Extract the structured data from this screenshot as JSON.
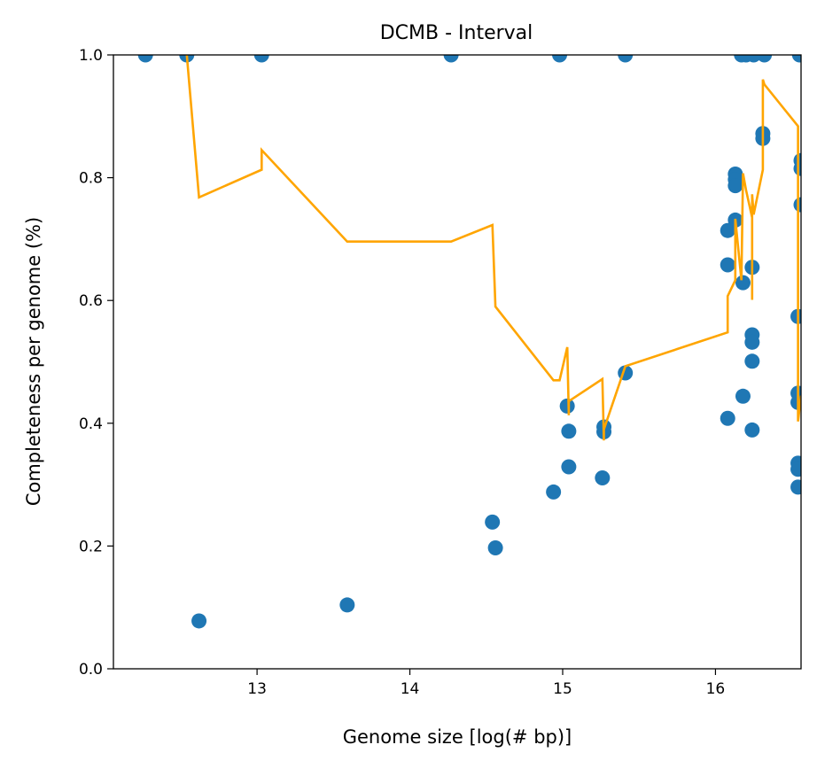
{
  "chart_data": {
    "type": "scatter",
    "title": "DCMB - Interval",
    "xlabel": "Genome size [log(# bp)]",
    "ylabel": "Completeness per genome (%)",
    "xlim": [
      12.06,
      16.56
    ],
    "ylim": [
      0.0,
      1.0
    ],
    "xticks": [
      13,
      14,
      15,
      16
    ],
    "xtick_labels": [
      "13",
      "14",
      "15",
      "16"
    ],
    "yticks": [
      0.0,
      0.2,
      0.4,
      0.6,
      0.8,
      1.0
    ],
    "ytick_labels": [
      "0.0",
      "0.2",
      "0.4",
      "0.6",
      "0.8",
      "1.0"
    ],
    "grid": false,
    "colors": {
      "points": "#1f77b4",
      "line": "#ffa500"
    },
    "series": [
      {
        "kind": "scatter",
        "points": [
          {
            "x": 12.27,
            "y": 1.0
          },
          {
            "x": 12.54,
            "y": 1.0
          },
          {
            "x": 12.62,
            "y": 0.078
          },
          {
            "x": 13.03,
            "y": 1.0
          },
          {
            "x": 13.59,
            "y": 0.104
          },
          {
            "x": 14.27,
            "y": 1.0
          },
          {
            "x": 14.54,
            "y": 0.239
          },
          {
            "x": 14.56,
            "y": 0.197
          },
          {
            "x": 14.94,
            "y": 0.288
          },
          {
            "x": 14.98,
            "y": 1.0
          },
          {
            "x": 15.03,
            "y": 0.428
          },
          {
            "x": 15.04,
            "y": 0.387
          },
          {
            "x": 15.04,
            "y": 0.329
          },
          {
            "x": 15.26,
            "y": 0.311
          },
          {
            "x": 15.27,
            "y": 0.394
          },
          {
            "x": 15.27,
            "y": 0.386
          },
          {
            "x": 15.41,
            "y": 0.482
          },
          {
            "x": 15.41,
            "y": 1.0
          },
          {
            "x": 16.08,
            "y": 0.714
          },
          {
            "x": 16.08,
            "y": 0.658
          },
          {
            "x": 16.08,
            "y": 0.408
          },
          {
            "x": 16.13,
            "y": 0.806
          },
          {
            "x": 16.13,
            "y": 0.797
          },
          {
            "x": 16.13,
            "y": 0.787
          },
          {
            "x": 16.13,
            "y": 0.731
          },
          {
            "x": 16.17,
            "y": 1.0
          },
          {
            "x": 16.18,
            "y": 0.629
          },
          {
            "x": 16.18,
            "y": 0.444
          },
          {
            "x": 16.2,
            "y": 1.0
          },
          {
            "x": 16.24,
            "y": 0.654
          },
          {
            "x": 16.24,
            "y": 0.544
          },
          {
            "x": 16.24,
            "y": 0.532
          },
          {
            "x": 16.24,
            "y": 0.501
          },
          {
            "x": 16.24,
            "y": 0.389
          },
          {
            "x": 16.25,
            "y": 1.0
          },
          {
            "x": 16.31,
            "y": 0.872
          },
          {
            "x": 16.31,
            "y": 0.864
          },
          {
            "x": 16.32,
            "y": 1.0
          },
          {
            "x": 16.54,
            "y": 0.574
          },
          {
            "x": 16.54,
            "y": 0.449
          },
          {
            "x": 16.54,
            "y": 0.434
          },
          {
            "x": 16.54,
            "y": 0.335
          },
          {
            "x": 16.54,
            "y": 0.325
          },
          {
            "x": 16.54,
            "y": 0.296
          },
          {
            "x": 16.55,
            "y": 1.0
          },
          {
            "x": 16.56,
            "y": 0.828
          },
          {
            "x": 16.56,
            "y": 0.815
          },
          {
            "x": 16.56,
            "y": 0.756
          }
        ]
      },
      {
        "kind": "line",
        "x": [
          12.54,
          12.62,
          13.03,
          13.03,
          13.59,
          14.27,
          14.54,
          14.56,
          14.94,
          14.98,
          15.03,
          15.04,
          15.04,
          15.26,
          15.27,
          15.27,
          15.41,
          16.08,
          16.08,
          16.13,
          16.13,
          16.17,
          16.18,
          16.2,
          16.24,
          16.24,
          16.24,
          16.25,
          16.31,
          16.31,
          16.32,
          16.54,
          16.54,
          16.56
        ],
        "y": [
          1.0,
          0.768,
          0.813,
          0.845,
          0.696,
          0.696,
          0.723,
          0.59,
          0.47,
          0.47,
          0.524,
          0.413,
          0.436,
          0.472,
          0.372,
          0.39,
          0.493,
          0.548,
          0.607,
          0.633,
          0.733,
          0.633,
          0.807,
          0.78,
          0.735,
          0.601,
          0.773,
          0.74,
          0.813,
          0.96,
          0.952,
          0.884,
          0.403,
          0.445
        ]
      }
    ]
  }
}
